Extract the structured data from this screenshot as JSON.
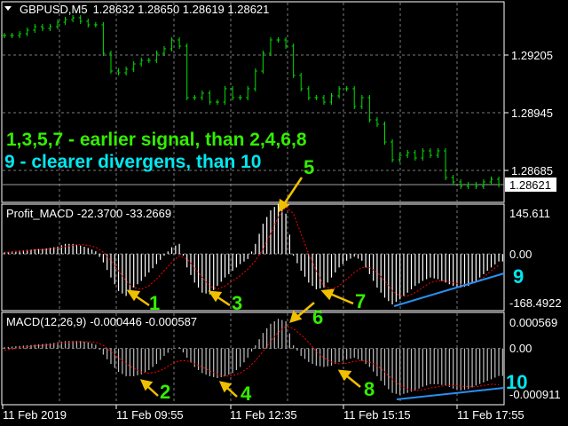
{
  "chart_data": [
    {
      "type": "candlestick",
      "title": "GBPUSD,M5",
      "header_values": "1.28632 1.28650 1.28619 1.28621",
      "ylim": [
        1.28541,
        1.29445
      ],
      "y_ticks": [
        "1.29205",
        "1.28945",
        "1.28685"
      ],
      "y_tick_values": [
        1.29205,
        1.28945,
        1.28685
      ],
      "current_price": "1.28621",
      "current_price_value": 1.28621,
      "close": [
        1.29293,
        1.29293,
        1.29301,
        1.29317,
        1.29333,
        1.29325,
        1.29333,
        1.29353,
        1.29365,
        1.29373,
        1.29357,
        1.29341,
        1.29341,
        1.29213,
        1.29133,
        1.29125,
        1.29141,
        1.29165,
        1.29181,
        1.29181,
        1.29213,
        1.29233,
        1.29273,
        1.29245,
        1.29013,
        1.29013,
        1.29033,
        1.28993,
        1.28993,
        1.29053,
        1.29013,
        1.29013,
        1.29053,
        1.29133,
        1.29213,
        1.29273,
        1.29273,
        1.29245,
        1.29113,
        1.29053,
        1.29013,
        1.29013,
        1.28993,
        1.29021,
        1.29053,
        1.29053,
        1.28973,
        1.29013,
        1.28913,
        1.28893,
        1.28813,
        1.28733,
        1.28753,
        1.28765,
        1.28741,
        1.28773,
        1.28753,
        1.28773,
        1.28653,
        1.28633,
        1.28613,
        1.28621,
        1.28613,
        1.28633,
        1.28645,
        1.28621
      ],
      "grid": true,
      "color": "#00e000"
    },
    {
      "type": "bar",
      "title": "Profit_MACD",
      "header_values": "-22.3700 -33.2669",
      "ylim": [
        -168.4922,
        145.611
      ],
      "y_ticks": [
        "145.611",
        "0.00",
        "-168.4922"
      ],
      "histogram": [
        5,
        8,
        10,
        12,
        14,
        15,
        18,
        22,
        30,
        30,
        25,
        18,
        8,
        -25,
        -70,
        -110,
        -125,
        -100,
        -80,
        -55,
        -30,
        -5,
        20,
        30,
        -40,
        -85,
        -115,
        -120,
        -95,
        -70,
        -50,
        -30,
        -15,
        30,
        90,
        130,
        150,
        120,
        -5,
        -50,
        -85,
        -105,
        -100,
        -70,
        -40,
        -20,
        -8,
        -20,
        -60,
        -100,
        -130,
        -150,
        -135,
        -115,
        -95,
        -80,
        -70,
        -75,
        -85,
        -95,
        -100,
        -95,
        -80,
        -60,
        -40,
        -22.37
      ],
      "signal": [
        5,
        6,
        8,
        10,
        12,
        13,
        15,
        18,
        22,
        26,
        28,
        26,
        20,
        5,
        -20,
        -50,
        -80,
        -100,
        -105,
        -95,
        -75,
        -50,
        -25,
        -5,
        -15,
        -40,
        -70,
        -95,
        -105,
        -95,
        -80,
        -65,
        -45,
        -20,
        15,
        60,
        110,
        140,
        120,
        60,
        0,
        -50,
        -95,
        -105,
        -95,
        -75,
        -55,
        -40,
        -40,
        -55,
        -80,
        -110,
        -125,
        -125,
        -115,
        -100,
        -85,
        -80,
        -80,
        -85,
        -90,
        -90,
        -85,
        -70,
        -50,
        -33.2669
      ],
      "histogram_color": "#ffffff",
      "signal_color": "#ff0000"
    },
    {
      "type": "bar",
      "title": "MACD(12,26,9)",
      "header_values": "-0.000446 -0.000587",
      "ylim": [
        -0.000911,
        0.000569
      ],
      "y_ticks": [
        "0.000569",
        "0.00",
        "-0.000911"
      ],
      "histogram": [
        2e-05,
        3e-05,
        4e-05,
        5e-05,
        6e-05,
        7e-05,
        8e-05,
        0.0001,
        0.00012,
        0.00012,
        0.00012,
        0.0001,
        6e-05,
        -0.0001,
        -0.00025,
        -0.00038,
        -0.00045,
        -0.00045,
        -0.00042,
        -0.00035,
        -0.00025,
        -0.00012,
        -2e-05,
        2e-05,
        -0.00015,
        -0.0003,
        -0.0004,
        -0.00045,
        -0.00048,
        -0.00045,
        -0.0004,
        -0.0003,
        -0.00015,
        5e-05,
        0.00025,
        0.0004,
        0.00048,
        0.00044,
        5e-05,
        -0.00012,
        -0.00022,
        -0.00028,
        -0.0003,
        -0.00028,
        -0.00022,
        -0.00018,
        -0.00015,
        -0.0002,
        -0.0003,
        -0.00045,
        -0.0006,
        -0.00072,
        -0.00075,
        -0.00072,
        -0.00068,
        -0.00062,
        -0.00058,
        -0.00058,
        -0.0006,
        -0.00065,
        -0.00068,
        -0.00066,
        -0.0006,
        -0.00055,
        -0.0005,
        -0.000446
      ],
      "signal": [
        -3e-05,
        -1e-05,
        1e-05,
        3e-05,
        4e-05,
        5e-05,
        6e-05,
        8e-05,
        9e-05,
        0.0001,
        0.00011,
        0.00011,
        0.0001,
        5e-05,
        -5e-05,
        -0.00015,
        -0.00025,
        -0.00032,
        -0.00038,
        -0.0004,
        -0.00038,
        -0.00033,
        -0.00025,
        -0.0002,
        -0.0002,
        -0.00025,
        -0.0003,
        -0.00036,
        -0.00042,
        -0.00045,
        -0.00044,
        -0.0004,
        -0.00032,
        -0.0002,
        -5e-05,
        0.00012,
        0.00026,
        0.00036,
        0.00032,
        0.00022,
        0.0001,
        -5e-05,
        -0.00015,
        -0.00022,
        -0.00025,
        -0.00024,
        -0.00021,
        -0.0002,
        -0.00022,
        -0.00028,
        -0.00038,
        -0.0005,
        -0.0006,
        -0.00066,
        -0.00068,
        -0.00067,
        -0.00064,
        -0.00062,
        -0.0006,
        -0.0006,
        -0.00061,
        -0.00062,
        -0.00062,
        -0.0006,
        -0.00058,
        -0.000587
      ],
      "histogram_color": "#c0c0c0",
      "signal_color": "#ff0000"
    }
  ],
  "time_axis": [
    "11 Feb 2019",
    "11 Feb 09:55",
    "11 Feb 12:35",
    "11 Feb 15:15",
    "11 Feb 17:55"
  ],
  "annotations": {
    "line1": "1,3,5,7 - earlier signal, than 2,4,6,8",
    "line2": "9 - clearer divergens, than 10",
    "labels": [
      "1",
      "2",
      "3",
      "4",
      "5",
      "6",
      "7",
      "8",
      "9",
      "10"
    ],
    "green": "#33ee00",
    "cyan": "#00e8f0",
    "arrow_color": "#f0c000",
    "divergence_line_color": "#2a8ff0"
  },
  "header_icon": "triangle-down-icon"
}
